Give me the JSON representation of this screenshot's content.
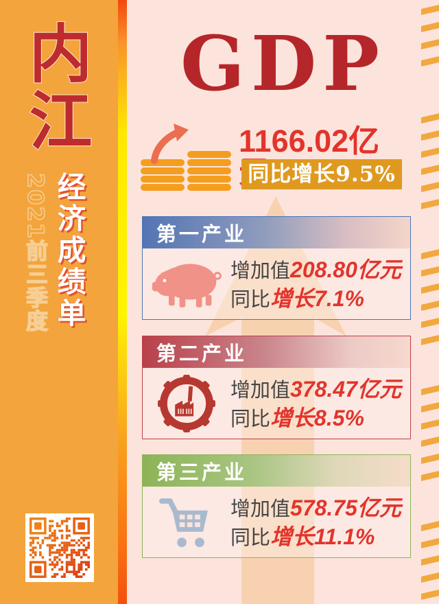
{
  "poster": {
    "city": "内江",
    "period": "2021前三季度",
    "subtitle": "经济成绩单",
    "gdp": {
      "heading": "GDP",
      "value": "1166.02亿元",
      "growth": "同比增长9.5%"
    },
    "industries": [
      {
        "name": "第一产业",
        "add_label": "增加值",
        "add_value": "208.80亿元",
        "yoy_label": "同比",
        "yoy_value": "增长7.1%",
        "icon": "pig-icon",
        "accent": "#4a74b8"
      },
      {
        "name": "第二产业",
        "add_label": "增加值",
        "add_value": "378.47亿元",
        "yoy_label": "同比",
        "yoy_value": "增长8.5%",
        "icon": "factory-gear-icon",
        "accent": "#bc4048"
      },
      {
        "name": "第三产业",
        "add_label": "增加值",
        "add_value": "578.75亿元",
        "yoy_label": "同比",
        "yoy_value": "增长11.1%",
        "icon": "shopping-cart-icon",
        "accent": "#8cb456"
      }
    ],
    "icons": {
      "coins": "coin-stacks-icon",
      "growth_arrow": "up-trend-arrow-icon",
      "big_arrow": "upward-arrow-watermark",
      "qr": "qr-code"
    },
    "colors": {
      "sidebar_orange": "#f3a43c",
      "background_pink": "#fce4dc",
      "gdp_red": "#b5262a",
      "number_red": "#e2342c",
      "gold_bar": "#e0991f",
      "edge_stripe": "#f2a83e",
      "strip_gradient_top": "#f4470e",
      "strip_gradient_mid": "#fff400",
      "strip_gradient_bottom": "#f4500d",
      "pig_pink": "#f09288",
      "gear_red": "#b73831",
      "cart_blue": "#a9bace"
    }
  }
}
